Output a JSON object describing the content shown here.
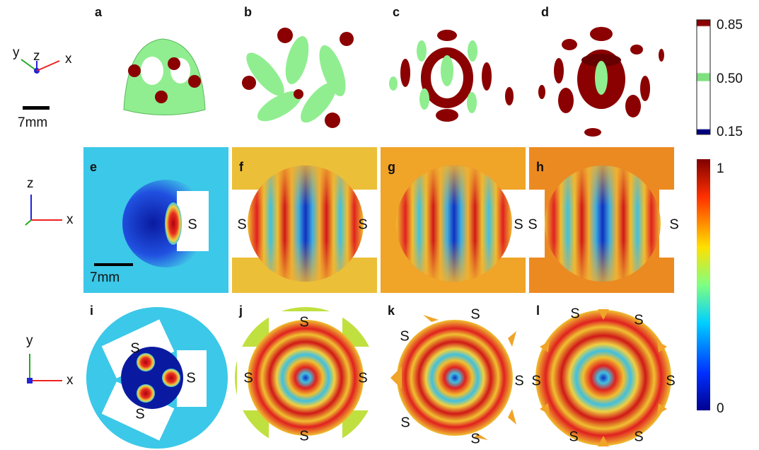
{
  "axes_icons": [
    {
      "labels": [
        "y",
        "z",
        "x"
      ]
    },
    {
      "labels": [
        "z",
        "x"
      ]
    },
    {
      "labels": [
        "y",
        "x"
      ]
    }
  ],
  "scale_bars": [
    "7mm",
    "7mm"
  ],
  "panels": [
    {
      "label": "a"
    },
    {
      "label": "b"
    },
    {
      "label": "c"
    },
    {
      "label": "d"
    },
    {
      "label": "e",
      "sources": [
        "S"
      ]
    },
    {
      "label": "f",
      "sources": [
        "S",
        "S"
      ]
    },
    {
      "label": "g",
      "sources": [
        "S"
      ]
    },
    {
      "label": "h",
      "sources": [
        "S",
        "S"
      ]
    },
    {
      "label": "i",
      "sources": [
        "S",
        "S",
        "S"
      ]
    },
    {
      "label": "j",
      "sources": [
        "S",
        "S",
        "S",
        "S"
      ]
    },
    {
      "label": "k",
      "sources": [
        "S",
        "S",
        "S",
        "S",
        "S"
      ]
    },
    {
      "label": "l",
      "sources": [
        "S",
        "S",
        "S",
        "S",
        "S",
        "S"
      ]
    }
  ],
  "colorbars": [
    {
      "ticks": [
        "0.85",
        "0.50",
        "0.15"
      ]
    },
    {
      "ticks": [
        "1",
        "0"
      ]
    }
  ]
}
